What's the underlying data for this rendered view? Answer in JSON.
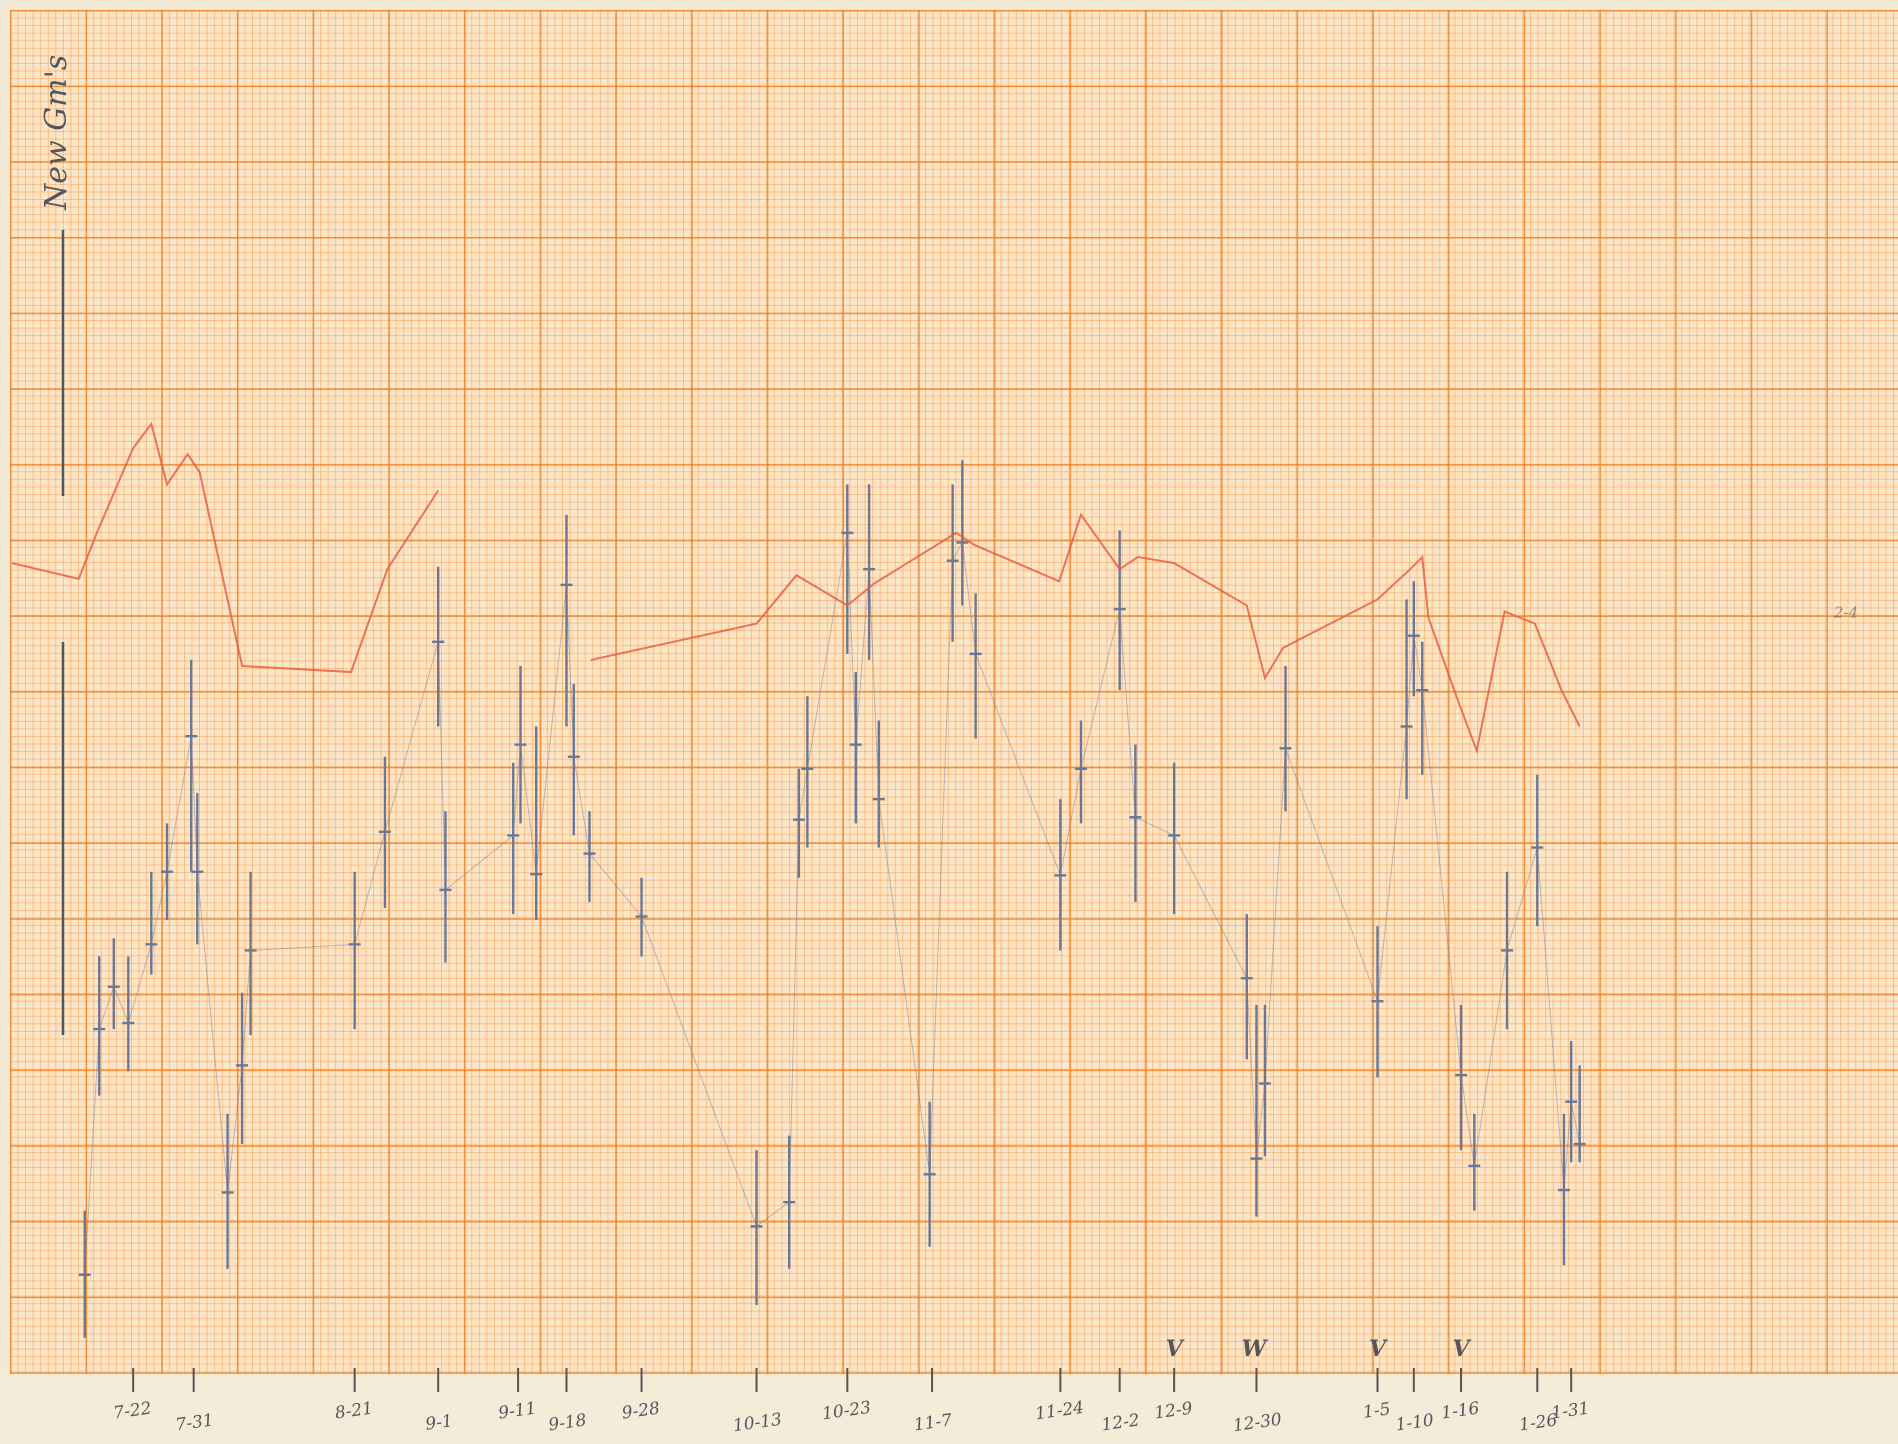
{
  "chart_data": {
    "type": "hilo",
    "y_label": "New Gm's",
    "xlim": [
      0,
      1568
    ],
    "ylim": [
      0,
      1127
    ],
    "xticks": [
      {
        "value": 110,
        "label": "7-22"
      },
      {
        "value": 160,
        "label": "7-31"
      },
      {
        "value": 293,
        "label": "8-21"
      },
      {
        "value": 362,
        "label": "9-1"
      },
      {
        "value": 428,
        "label": "9-11"
      },
      {
        "value": 468,
        "label": "9-18"
      },
      {
        "value": 530,
        "label": "9-28"
      },
      {
        "value": 625,
        "label": "10-13"
      },
      {
        "value": 700,
        "label": "10-23"
      },
      {
        "value": 770,
        "label": "11-7"
      },
      {
        "value": 876,
        "label": "11-24"
      },
      {
        "value": 925,
        "label": "12-2"
      },
      {
        "value": 970,
        "label": "12-9"
      },
      {
        "value": 1038,
        "label": "12-30"
      },
      {
        "value": 1138,
        "label": "1-5"
      },
      {
        "value": 1168,
        "label": "1-10"
      },
      {
        "value": 1207,
        "label": "1-16"
      },
      {
        "value": 1270,
        "label": "1-26"
      },
      {
        "value": 1298,
        "label": "1-31"
      }
    ],
    "markers": [
      {
        "label": "V",
        "x": 970
      },
      {
        "label": "W",
        "x": 1036
      },
      {
        "label": "V",
        "x": 1138
      },
      {
        "label": "V",
        "x": 1207
      }
    ],
    "annotations": [
      {
        "text": "2-4",
        "x": 1525,
        "y": 625
      }
    ],
    "series": [
      {
        "name": "range",
        "color": "#6a7896",
        "x": [
          70,
          82,
          94,
          106,
          125,
          138,
          158,
          163,
          188,
          200,
          207,
          293,
          318,
          362,
          368,
          424,
          430,
          443,
          468,
          474,
          487,
          530,
          625,
          652,
          660,
          667,
          700,
          707,
          718,
          726,
          768,
          787,
          795,
          806,
          876,
          893,
          925,
          938,
          970,
          1030,
          1038,
          1045,
          1062,
          1138,
          1162,
          1168,
          1175,
          1207,
          1218,
          1245,
          1270,
          1292,
          1298,
          1305
        ],
        "high": [
          135,
          345,
          360,
          345,
          415,
          455,
          590,
          480,
          215,
          315,
          415,
          415,
          510,
          667,
          465,
          505,
          585,
          535,
          710,
          570,
          465,
          410,
          185,
          197,
          500,
          560,
          735,
          580,
          735,
          540,
          225,
          735,
          755,
          645,
          475,
          540,
          697,
          520,
          505,
          380,
          305,
          305,
          585,
          370,
          640,
          655,
          605,
          305,
          215,
          415,
          495,
          215,
          275,
          255
        ],
        "low": [
          30,
          230,
          285,
          250,
          330,
          375,
          415,
          355,
          87,
          190,
          280,
          285,
          385,
          535,
          340,
          380,
          455,
          375,
          535,
          445,
          390,
          345,
          57,
          87,
          410,
          435,
          595,
          455,
          590,
          435,
          105,
          605,
          635,
          525,
          350,
          455,
          565,
          390,
          380,
          260,
          130,
          180,
          465,
          245,
          475,
          560,
          495,
          185,
          135,
          285,
          370,
          90,
          175,
          175
        ],
        "close": [
          82,
          285,
          320,
          290,
          355,
          415,
          527,
          415,
          150,
          255,
          350,
          355,
          448,
          605,
          400,
          445,
          520,
          413,
          652,
          510,
          430,
          378,
          122,
          142,
          458,
          500,
          695,
          520,
          665,
          475,
          165,
          672,
          687,
          595,
          412,
          500,
          632,
          460,
          445,
          327,
          178,
          240,
          517,
          308,
          535,
          610,
          565,
          247,
          172,
          350,
          435,
          152,
          225,
          190
        ]
      },
      {
        "name": "trend",
        "color": "#e8583c",
        "x": [
          10,
          65,
          80,
          110,
          125,
          138,
          155,
          165,
          200,
          290,
          320,
          362,
          468,
          488,
          625,
          658,
          700,
          722,
          790,
          805,
          875,
          893,
          925,
          940,
          970,
          1030,
          1045,
          1060,
          1138,
          1165,
          1175,
          1180,
          1205,
          1220,
          1243,
          1268,
          1290,
          1305
        ],
        "values": [
          670,
          657,
          695,
          765,
          785,
          735,
          760,
          745,
          585,
          580,
          665,
          730,
          null,
          590,
          620,
          660,
          635,
          653,
          695,
          685,
          655,
          710,
          665,
          675,
          670,
          635,
          575,
          600,
          640,
          665,
          675,
          625,
          555,
          515,
          630,
          620,
          565,
          535
        ]
      }
    ]
  }
}
